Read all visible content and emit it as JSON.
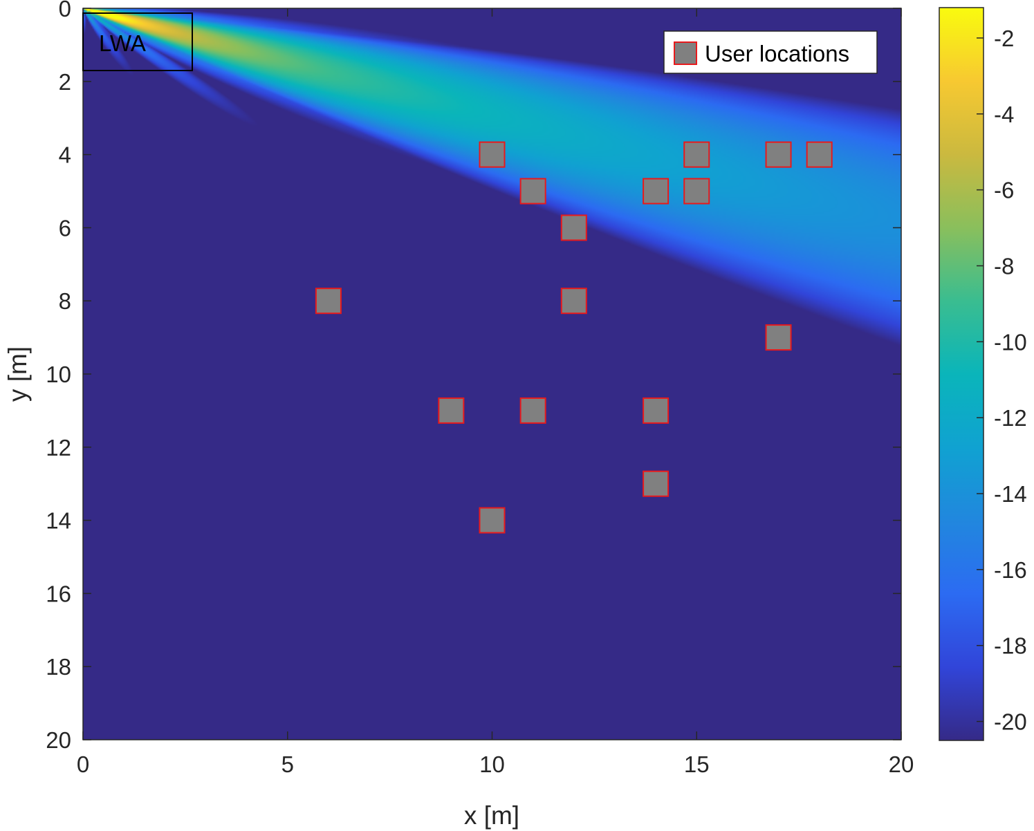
{
  "chart_data": {
    "type": "heatmap",
    "xlabel": "x [m]",
    "ylabel": "y [m]",
    "xlim": [
      0,
      20
    ],
    "ylim": [
      0,
      20
    ],
    "y_direction": "reversed",
    "xticks": [
      0,
      5,
      10,
      15,
      20
    ],
    "yticks": [
      0,
      2,
      4,
      6,
      8,
      10,
      12,
      14,
      16,
      18,
      20
    ],
    "colorbar": {
      "colormap": "parula",
      "range": [
        -20.5,
        -1.2
      ],
      "ticks": [
        -2,
        -4,
        -6,
        -8,
        -10,
        -12,
        -14,
        -16,
        -18,
        -20
      ]
    },
    "annotation": {
      "text": "LWA",
      "box": {
        "x0": 0,
        "x1": 2.65,
        "y0": 0,
        "y1": 1.6
      }
    },
    "legend": {
      "label": "User locations",
      "location": "top-right"
    },
    "series": [
      {
        "name": "User locations",
        "marker": "square",
        "face_color": "#808080",
        "edge_color": "#e8191c",
        "points": [
          {
            "x": 10,
            "y": 4
          },
          {
            "x": 15,
            "y": 4
          },
          {
            "x": 17,
            "y": 4
          },
          {
            "x": 18,
            "y": 4
          },
          {
            "x": 11,
            "y": 5
          },
          {
            "x": 14,
            "y": 5
          },
          {
            "x": 15,
            "y": 5
          },
          {
            "x": 12,
            "y": 6
          },
          {
            "x": 6,
            "y": 8
          },
          {
            "x": 12,
            "y": 8
          },
          {
            "x": 17,
            "y": 9
          },
          {
            "x": 9,
            "y": 11
          },
          {
            "x": 11,
            "y": 11
          },
          {
            "x": 14,
            "y": 11
          },
          {
            "x": 14,
            "y": 13
          },
          {
            "x": 10,
            "y": 14
          }
        ]
      }
    ]
  }
}
